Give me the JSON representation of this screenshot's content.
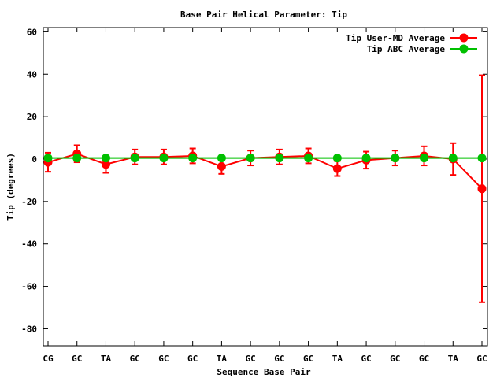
{
  "chart_data": {
    "type": "line",
    "title": "Base Pair Helical Parameter: Tip",
    "xlabel": "Sequence Base Pair",
    "ylabel": "Tip (degrees)",
    "categories": [
      "CG",
      "GC",
      "TA",
      "GC",
      "GC",
      "GC",
      "TA",
      "GC",
      "GC",
      "GC",
      "TA",
      "GC",
      "GC",
      "GC",
      "TA",
      "GC"
    ],
    "ylim": [
      -88,
      62
    ],
    "yticks": [
      60,
      40,
      20,
      0,
      -20,
      -40,
      -60,
      -80
    ],
    "ytick_labels": [
      "60",
      "40",
      "20",
      "0",
      "-20",
      "-40",
      "-60",
      "-80"
    ],
    "grid": false,
    "legend_position": "top-right",
    "series": [
      {
        "name": "Tip User-MD Average",
        "color": "#ff0000",
        "values": [
          -1.5,
          2.5,
          -2.5,
          1.0,
          1.0,
          1.5,
          -3.5,
          0.5,
          1.0,
          1.5,
          -4.5,
          -0.5,
          0.5,
          1.5,
          0.0,
          -14.0
        ],
        "errors": [
          4.5,
          4.0,
          4.0,
          3.5,
          3.5,
          3.5,
          3.5,
          3.5,
          3.5,
          3.5,
          3.5,
          4.0,
          3.5,
          4.5,
          7.5,
          53.5
        ]
      },
      {
        "name": "Tip ABC Average",
        "color": "#00c000",
        "values": [
          0.5,
          0.5,
          0.5,
          0.5,
          0.5,
          0.5,
          0.5,
          0.5,
          0.5,
          0.5,
          0.5,
          0.5,
          0.5,
          0.5,
          0.5,
          0.5
        ]
      }
    ]
  }
}
